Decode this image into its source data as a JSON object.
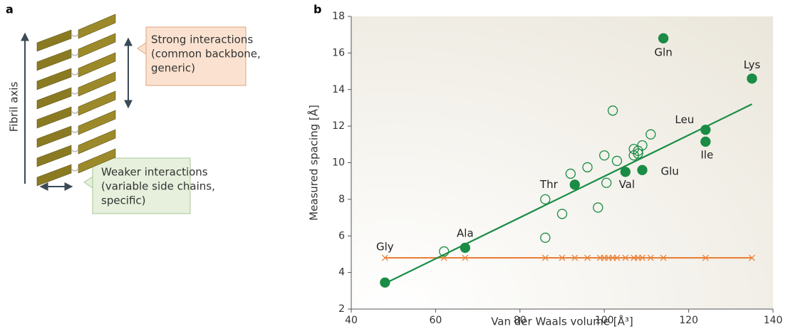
{
  "panel_labels": [
    "a",
    "b"
  ],
  "illustration": {
    "axis_label": "Fibril axis",
    "strong_callout": [
      "Strong interactions",
      "(common backbone,",
      "generic)"
    ],
    "weak_callout": [
      "Weaker interactions",
      "(variable side chains,",
      "specific)"
    ]
  },
  "chart_data": {
    "type": "scatter",
    "xlabel": "Van der Waals volume [Å³]",
    "ylabel": "Measured spacing [Å]",
    "xlim": [
      40,
      140
    ],
    "xticks": [
      40,
      60,
      80,
      100,
      120,
      140
    ],
    "ylim": [
      2,
      18
    ],
    "yticks": [
      2,
      4,
      6,
      8,
      10,
      12,
      14,
      16,
      18
    ],
    "grid": false,
    "series": [
      {
        "marker": "x",
        "connect": true,
        "color": "#e8823a",
        "x": [
          48,
          62,
          67,
          86,
          90,
          93,
          96,
          99,
          100,
          101,
          102,
          103,
          105,
          107,
          108,
          109,
          111,
          114,
          124,
          135
        ],
        "values": [
          4.8,
          4.8,
          4.8,
          4.8,
          4.8,
          4.8,
          4.8,
          4.8,
          4.8,
          4.8,
          4.8,
          4.8,
          4.8,
          4.8,
          4.8,
          4.8,
          4.8,
          4.8,
          4.8,
          4.8
        ]
      },
      {
        "marker": "line",
        "color": "#1a8c45",
        "x": [
          48,
          135
        ],
        "values": [
          3.4,
          13.2
        ]
      },
      {
        "marker": "open",
        "color": "#1a8c45",
        "x": [
          62,
          86,
          86,
          90,
          92,
          96,
          98.5,
          100,
          100.5,
          103,
          102,
          107,
          107,
          108,
          108,
          109,
          111
        ],
        "values": [
          5.15,
          5.9,
          8.0,
          7.2,
          9.4,
          9.75,
          7.55,
          10.4,
          8.9,
          10.1,
          12.85,
          10.4,
          10.75,
          10.5,
          10.65,
          10.95,
          11.55
        ]
      },
      {
        "marker": "filled",
        "color": "#1a8c45",
        "x": [
          48,
          67,
          93,
          105,
          109,
          124,
          124,
          114,
          135
        ],
        "values": [
          3.45,
          5.35,
          8.8,
          9.5,
          9.6,
          11.8,
          11.15,
          16.8,
          14.6
        ],
        "labels": [
          "Gly",
          "Ala",
          "Thr",
          "Val",
          "Glu",
          "Leu",
          "Ile",
          "Gln",
          "Lys"
        ]
      }
    ]
  }
}
